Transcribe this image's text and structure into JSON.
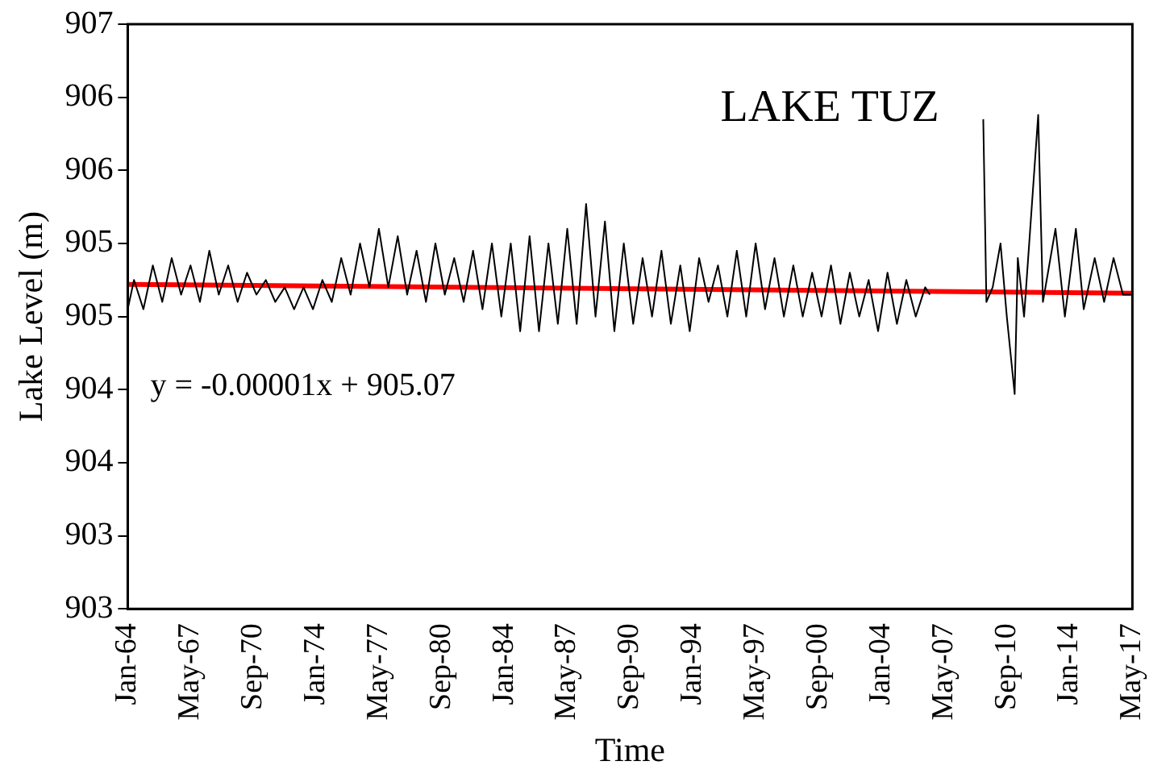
{
  "chart_data": {
    "type": "line",
    "xlabel": "Time",
    "ylabel": "Lake Level (m)",
    "annotations": [
      "LAKE TUZ",
      "y = -0.00001x + 905.07"
    ],
    "xlim": [
      "1964-01",
      "2017-05"
    ],
    "xticks": [
      {
        "value": "1964-01",
        "label": "Jan-64"
      },
      {
        "value": "1967-05",
        "label": "May-67"
      },
      {
        "value": "1970-09",
        "label": "Sep-70"
      },
      {
        "value": "1974-01",
        "label": "Jan-74"
      },
      {
        "value": "1977-05",
        "label": "May-77"
      },
      {
        "value": "1980-09",
        "label": "Sep-80"
      },
      {
        "value": "1984-01",
        "label": "Jan-84"
      },
      {
        "value": "1987-05",
        "label": "May-87"
      },
      {
        "value": "1990-09",
        "label": "Sep-90"
      },
      {
        "value": "1994-01",
        "label": "Jan-94"
      },
      {
        "value": "1997-05",
        "label": "May-97"
      },
      {
        "value": "2000-09",
        "label": "Sep-00"
      },
      {
        "value": "2004-01",
        "label": "Jan-04"
      },
      {
        "value": "2007-05",
        "label": "May-07"
      },
      {
        "value": "2010-09",
        "label": "Sep-10"
      },
      {
        "value": "2014-01",
        "label": "Jan-14"
      },
      {
        "value": "2017-05",
        "label": "May-17"
      }
    ],
    "ylim": [
      902.8,
      906.8
    ],
    "yticks": [
      {
        "value": 902.8,
        "label": "903"
      },
      {
        "value": 903.3,
        "label": "903"
      },
      {
        "value": 903.8,
        "label": "904"
      },
      {
        "value": 904.3,
        "label": "904"
      },
      {
        "value": 904.8,
        "label": "905"
      },
      {
        "value": 905.3,
        "label": "905"
      },
      {
        "value": 905.8,
        "label": "906"
      },
      {
        "value": 906.3,
        "label": "906"
      },
      {
        "value": 906.8,
        "label": "907"
      }
    ],
    "grid": false,
    "legend": false,
    "marker": "none",
    "line_style": "solid",
    "series": [
      {
        "color": "#000000",
        "x": [
          "1964-01",
          "1964-05",
          "1964-11",
          "1965-05",
          "1965-11",
          "1966-05",
          "1966-11",
          "1967-05",
          "1967-11",
          "1968-05",
          "1968-11",
          "1969-05",
          "1969-11",
          "1970-05",
          "1970-11",
          "1971-05",
          "1971-11",
          "1972-05",
          "1972-11",
          "1973-05",
          "1973-11",
          "1974-05",
          "1974-11",
          "1975-05",
          "1975-11",
          "1976-05",
          "1976-11",
          "1977-05",
          "1977-11",
          "1978-05",
          "1978-11",
          "1979-05",
          "1979-11",
          "1980-05",
          "1980-11",
          "1981-05",
          "1981-11",
          "1982-05",
          "1982-11",
          "1983-05",
          "1983-11",
          "1984-05",
          "1984-11",
          "1985-05",
          "1985-11",
          "1986-05",
          "1986-11",
          "1987-05",
          "1987-11",
          "1988-05",
          "1988-11",
          "1989-05",
          "1989-11",
          "1990-05",
          "1990-11",
          "1991-05",
          "1991-11",
          "1992-05",
          "1992-11",
          "1993-05",
          "1993-11",
          "1994-05",
          "1994-11",
          "1995-05",
          "1995-11",
          "1996-05",
          "1996-11",
          "1997-05",
          "1997-11",
          "1998-05",
          "1998-11",
          "1999-05",
          "1999-11",
          "2000-05",
          "2000-11",
          "2001-05",
          "2001-11",
          "2002-05",
          "2002-11",
          "2003-05",
          "2003-11",
          "2004-05",
          "2004-11",
          "2005-05",
          "2005-11",
          "2006-05",
          "2006-08",
          "2008-01",
          "2009-06",
          "2009-08",
          "2009-12",
          "2010-05",
          "2010-09",
          "2011-02",
          "2011-04",
          "2011-08",
          "2012-05",
          "2012-08",
          "2013-04",
          "2013-10",
          "2014-05",
          "2014-10",
          "2015-05",
          "2015-11",
          "2016-05",
          "2016-11",
          "2017-04"
        ],
        "values": [
          904.85,
          905.05,
          904.85,
          905.15,
          904.9,
          905.2,
          904.95,
          905.15,
          904.9,
          905.25,
          904.95,
          905.15,
          904.9,
          905.1,
          904.95,
          905.05,
          904.9,
          905.0,
          904.85,
          905.0,
          904.85,
          905.05,
          904.9,
          905.2,
          904.95,
          905.3,
          905.0,
          905.4,
          905.0,
          905.35,
          904.95,
          905.25,
          904.9,
          905.3,
          904.95,
          905.2,
          904.9,
          905.25,
          904.85,
          905.3,
          904.8,
          905.3,
          904.7,
          905.35,
          904.7,
          905.3,
          904.75,
          905.4,
          904.75,
          905.57,
          904.8,
          905.45,
          904.7,
          905.3,
          904.75,
          905.2,
          904.8,
          905.25,
          904.75,
          905.15,
          904.7,
          905.2,
          904.9,
          905.15,
          904.8,
          905.25,
          904.8,
          905.3,
          904.85,
          905.2,
          904.8,
          905.15,
          904.8,
          905.1,
          904.8,
          905.15,
          904.75,
          905.1,
          904.8,
          905.05,
          904.7,
          905.1,
          904.75,
          905.05,
          904.8,
          905.0,
          904.95,
          null,
          906.15,
          904.9,
          905.0,
          905.3,
          904.8,
          904.27,
          905.2,
          904.8,
          906.18,
          904.9,
          905.4,
          904.8,
          905.4,
          904.85,
          905.2,
          904.9,
          905.2,
          904.95,
          904.95
        ]
      },
      {
        "type": "line",
        "color": "#ff0000",
        "x": [
          "1964-01",
          "2017-05"
        ],
        "values": [
          905.02,
          904.96
        ]
      }
    ]
  }
}
